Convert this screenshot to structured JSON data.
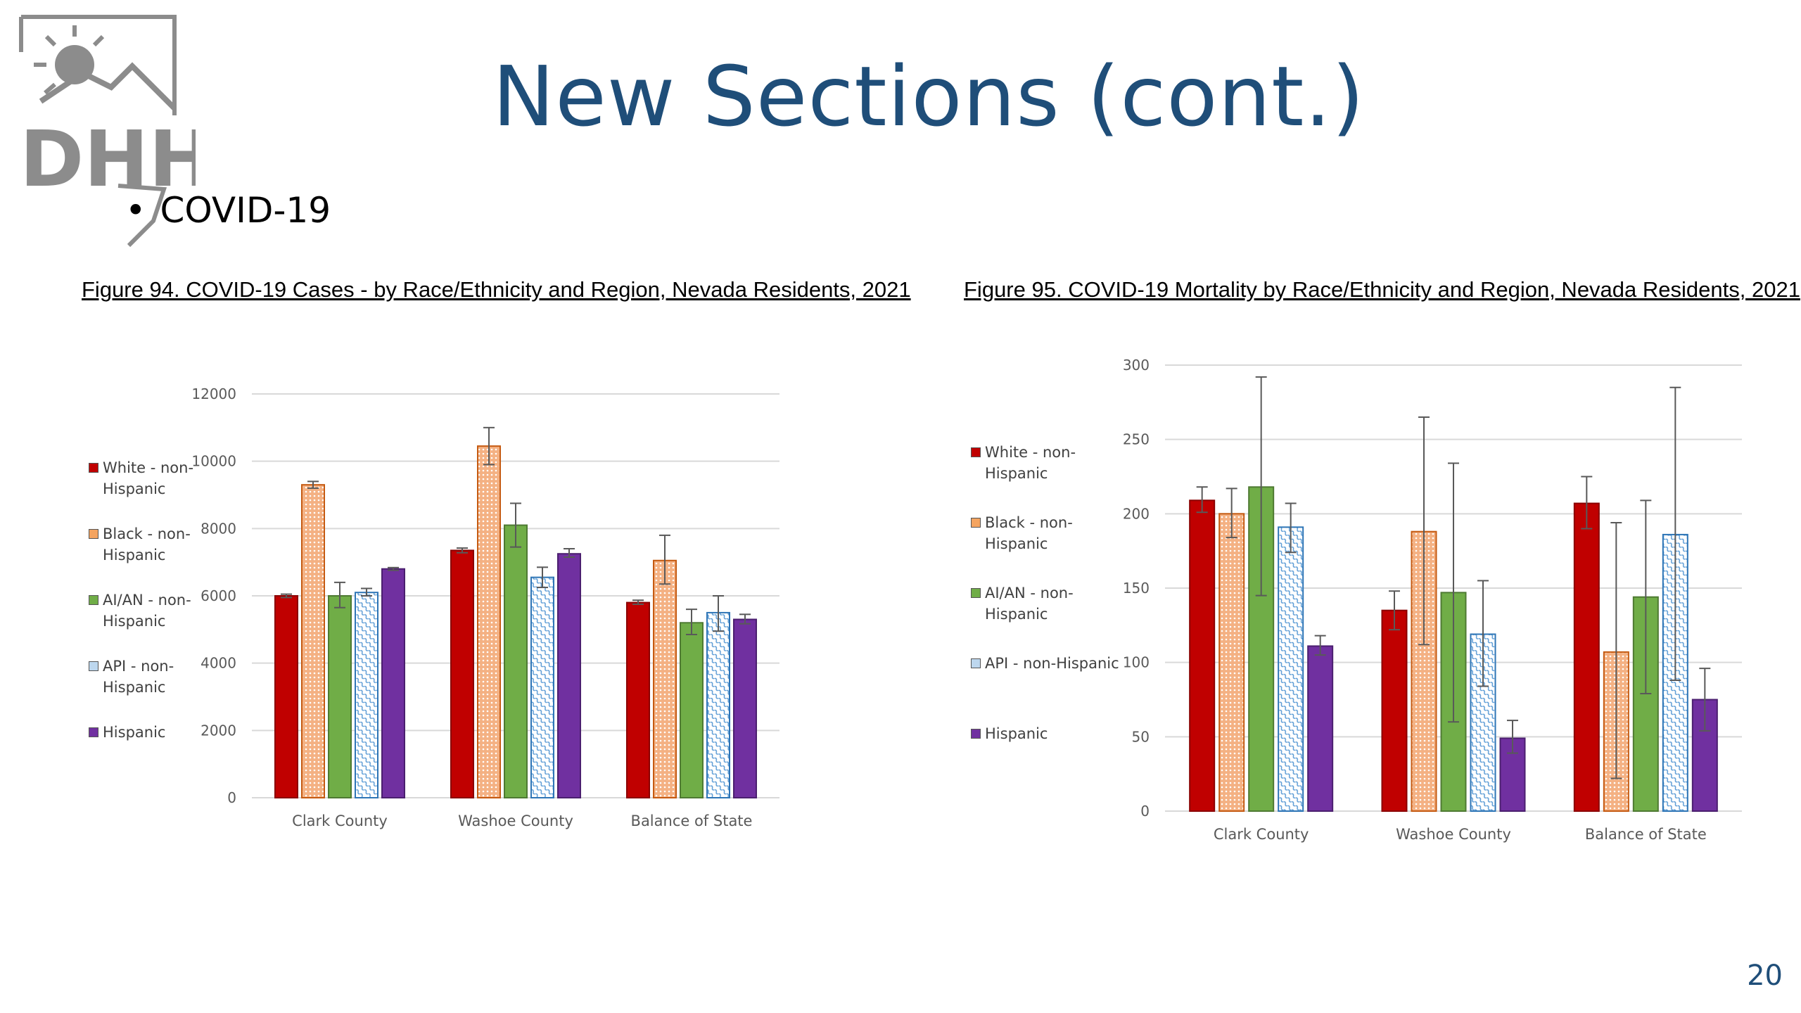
{
  "slide": {
    "title": "New Sections (cont.)",
    "bullet": "COVID-19",
    "page_number": "20"
  },
  "logo": {
    "text": "DHHS",
    "icon": "dhhs-logo"
  },
  "colors": {
    "title": "#1f4e79",
    "white_non_hispanic": "#c00000",
    "black_non_hispanic": "#f4a460",
    "aian_non_hispanic": "#70ad47",
    "api_non_hispanic": "#bdd7ee",
    "hispanic": "#7030a0"
  },
  "chart_data": [
    {
      "type": "bar",
      "title": "Figure 94. COVID-19 Cases - by Race/Ethnicity and Region, Nevada Residents, 2021",
      "categories": [
        "Clark County",
        "Washoe County",
        "Balance of State"
      ],
      "ylim": [
        0,
        12000
      ],
      "yticks": [
        0,
        2000,
        4000,
        6000,
        8000,
        10000,
        12000
      ],
      "grid": true,
      "legend_position": "left",
      "series": [
        {
          "name": "White - non-Hispanic",
          "values": [
            6000,
            7350,
            5800
          ],
          "err_low": [
            5950,
            7280,
            5750
          ],
          "err_high": [
            6050,
            7420,
            5870
          ]
        },
        {
          "name": "Black - non-Hispanic",
          "values": [
            9300,
            10450,
            7050
          ],
          "err_low": [
            9200,
            9900,
            6350
          ],
          "err_high": [
            9400,
            11000,
            7800
          ]
        },
        {
          "name": "AI/AN - non-Hispanic",
          "values": [
            6000,
            8100,
            5200
          ],
          "err_low": [
            5650,
            7450,
            4850
          ],
          "err_high": [
            6400,
            8750,
            5600
          ]
        },
        {
          "name": "API - non-Hispanic",
          "values": [
            6100,
            6550,
            5500
          ],
          "err_low": [
            6000,
            6250,
            4950
          ],
          "err_high": [
            6220,
            6850,
            6000
          ]
        },
        {
          "name": "Hispanic",
          "values": [
            6800,
            7250,
            5300
          ],
          "err_low": [
            6760,
            7150,
            5170
          ],
          "err_high": [
            6840,
            7400,
            5450
          ]
        }
      ]
    },
    {
      "type": "bar",
      "title": "Figure 95. COVID-19 Mortality by Race/Ethnicity and Region, Nevada Residents, 2021",
      "categories": [
        "Clark County",
        "Washoe County",
        "Balance of State"
      ],
      "ylim": [
        0,
        300
      ],
      "yticks": [
        0,
        50,
        100,
        150,
        200,
        250,
        300
      ],
      "grid": true,
      "legend_position": "left",
      "series": [
        {
          "name": "White - non-Hispanic",
          "values": [
            209,
            135,
            207
          ],
          "err_low": [
            201,
            122,
            190
          ],
          "err_high": [
            218,
            148,
            225
          ]
        },
        {
          "name": "Black - non-Hispanic",
          "values": [
            200,
            188,
            107
          ],
          "err_low": [
            184,
            112,
            22
          ],
          "err_high": [
            217,
            265,
            194
          ]
        },
        {
          "name": "AI/AN - non-Hispanic",
          "values": [
            218,
            147,
            144
          ],
          "err_low": [
            145,
            60,
            79
          ],
          "err_high": [
            292,
            234,
            209
          ]
        },
        {
          "name": "API - non-Hispanic",
          "values": [
            191,
            119,
            186
          ],
          "err_low": [
            174,
            84,
            88
          ],
          "err_high": [
            207,
            155,
            285
          ]
        },
        {
          "name": "Hispanic",
          "values": [
            111,
            49,
            75
          ],
          "err_low": [
            105,
            39,
            54
          ],
          "err_high": [
            118,
            61,
            96
          ]
        }
      ]
    }
  ],
  "legend_labels": {
    "fig94": [
      "White - non-Hispanic",
      "Black - non-Hispanic",
      "AI/AN - non-Hispanic",
      "API - non-Hispanic",
      "Hispanic"
    ],
    "fig95": [
      "White - non-Hispanic",
      "Black - non-Hispanic",
      "AI/AN - non-Hispanic",
      "API - non-Hispanic",
      "Hispanic"
    ]
  }
}
